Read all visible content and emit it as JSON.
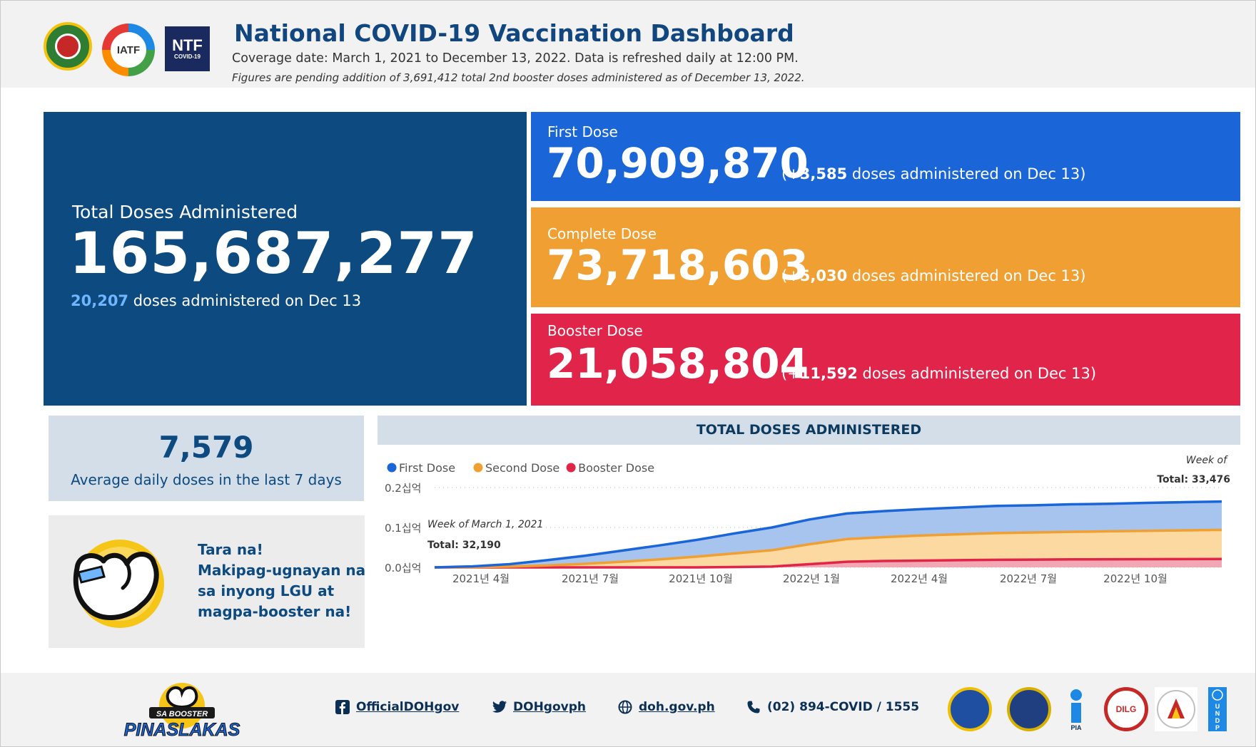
{
  "header": {
    "title": "National COVID-19 Vaccination Dashboard",
    "subtitle": "Coverage date: March 1, 2021 to December 13, 2022. Data is refreshed daily at 12:00 PM.",
    "note": "Figures are pending addition of 3,691,412 total 2nd booster doses administered as of December 13, 2022.",
    "logos": {
      "iatf_text": "IATF",
      "ntf_text": "NTF",
      "ntf_sub": "COVID-19"
    }
  },
  "total": {
    "label": "Total Doses Administered",
    "value": "165,687,277",
    "today_value": "20,207",
    "today_suffix": " doses administered on Dec 13"
  },
  "first": {
    "label": "First Dose",
    "value": "70,909,870",
    "delta_prefix": "(+",
    "delta_value": "3,585",
    "delta_suffix": " doses administered on Dec 13)"
  },
  "complete": {
    "label": "Complete Dose",
    "value": "73,718,603",
    "delta_prefix": "(+",
    "delta_value": "5,030",
    "delta_suffix": " doses administered on Dec 13)"
  },
  "booster": {
    "label": "Booster Dose",
    "value": "21,058,804",
    "delta_prefix": "(+",
    "delta_value": "11,592",
    "delta_suffix": " doses administered on Dec 13)"
  },
  "average": {
    "value": "7,579",
    "label": "Average daily doses in the last 7 days"
  },
  "promo": {
    "lines": [
      "Tara na!",
      "Makipag-ugnayan na",
      "sa inyong LGU at",
      "magpa-booster na!"
    ]
  },
  "chart_header": "TOTAL DOSES ADMINISTERED",
  "chart_data": {
    "type": "area",
    "title": "TOTAL DOSES ADMINISTERED",
    "xlabel": "",
    "ylabel": "",
    "stacked": true,
    "legend_placement": "top-left",
    "ylim": [
      0,
      0.2
    ],
    "y_unit": "십억",
    "yticks": [
      "0.0십억",
      "0.1십억",
      "0.2십억"
    ],
    "xticks": [
      "2021년 4월",
      "2021년 7월",
      "2021년 10월",
      "2022년 1월",
      "2022년 4월",
      "2022년 7월",
      "2022년 10월"
    ],
    "x": [
      "2021-03",
      "2021-04",
      "2021-05",
      "2021-06",
      "2021-07",
      "2021-08",
      "2021-09",
      "2021-10",
      "2021-11",
      "2021-12",
      "2022-01",
      "2022-02",
      "2022-03",
      "2022-04",
      "2022-05",
      "2022-06",
      "2022-07",
      "2022-08",
      "2022-09",
      "2022-10",
      "2022-11",
      "2022-12"
    ],
    "series": [
      {
        "name": "Booster Dose",
        "color": "#e0244a",
        "values": [
          0,
          0,
          0,
          0,
          0,
          0,
          0,
          0,
          0.001,
          0.002,
          0.008,
          0.014,
          0.016,
          0.017,
          0.018,
          0.019,
          0.0195,
          0.02,
          0.0203,
          0.0206,
          0.0208,
          0.021
        ]
      },
      {
        "name": "Second Dose",
        "color": "#f0a033",
        "values": [
          0,
          0.0005,
          0.002,
          0.005,
          0.009,
          0.014,
          0.02,
          0.027,
          0.034,
          0.041,
          0.05,
          0.057,
          0.06,
          0.063,
          0.065,
          0.067,
          0.068,
          0.069,
          0.07,
          0.071,
          0.072,
          0.073
        ]
      },
      {
        "name": "First Dose",
        "color": "#1a66d8",
        "values": [
          0,
          0.002,
          0.006,
          0.013,
          0.02,
          0.028,
          0.035,
          0.042,
          0.05,
          0.057,
          0.062,
          0.064,
          0.065,
          0.066,
          0.067,
          0.068,
          0.068,
          0.069,
          0.069,
          0.07,
          0.0705,
          0.071
        ]
      }
    ],
    "annotations": [
      {
        "label": "Week of March 1, 2021",
        "value_label": "Total: 32,190"
      },
      {
        "label": "Week of",
        "value_label": "Total: 33,476"
      }
    ]
  },
  "footer": {
    "facebook": "OfficialDOHgov",
    "twitter": "DOHgovph",
    "website": "doh.gov.ph",
    "phone": "(02) 894-COVID / 1555",
    "promo_logo_top": "SA BOOSTER",
    "promo_logo_bottom": "PINASLAKAS",
    "dilg": "DILG",
    "pia": "PIA",
    "undp": "U N D P"
  }
}
